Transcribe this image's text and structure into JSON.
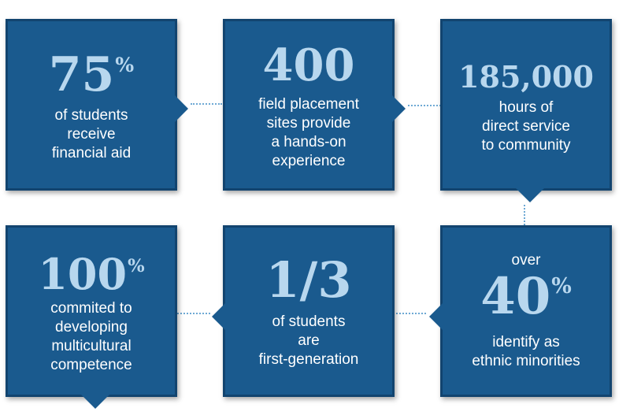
{
  "stats": [
    {
      "value": "75",
      "suffix": "%",
      "lines": [
        "of students",
        "receive",
        "financial aid"
      ]
    },
    {
      "value": "400",
      "suffix": "",
      "lines": [
        "field placement",
        "sites provide",
        "a hands-on",
        "experience"
      ]
    },
    {
      "value": "185,000",
      "suffix": "",
      "lines": [
        "hours of",
        "direct service",
        "to community"
      ]
    },
    {
      "prefix": "over",
      "value": "40",
      "suffix": "%",
      "lines": [
        "identify as",
        "ethnic minorities"
      ]
    },
    {
      "value": "1/3",
      "suffix": "",
      "lines": [
        "of students",
        "are",
        "first-generation"
      ]
    },
    {
      "value": "100",
      "suffix": "%",
      "lines": [
        "commited to",
        "developing",
        "multicultural",
        "competence"
      ]
    }
  ],
  "colors": {
    "box_fill": "#1a5a8e",
    "box_border": "#12446f",
    "number_text": "#b8d7ee",
    "connector": "#6ea9d4"
  }
}
